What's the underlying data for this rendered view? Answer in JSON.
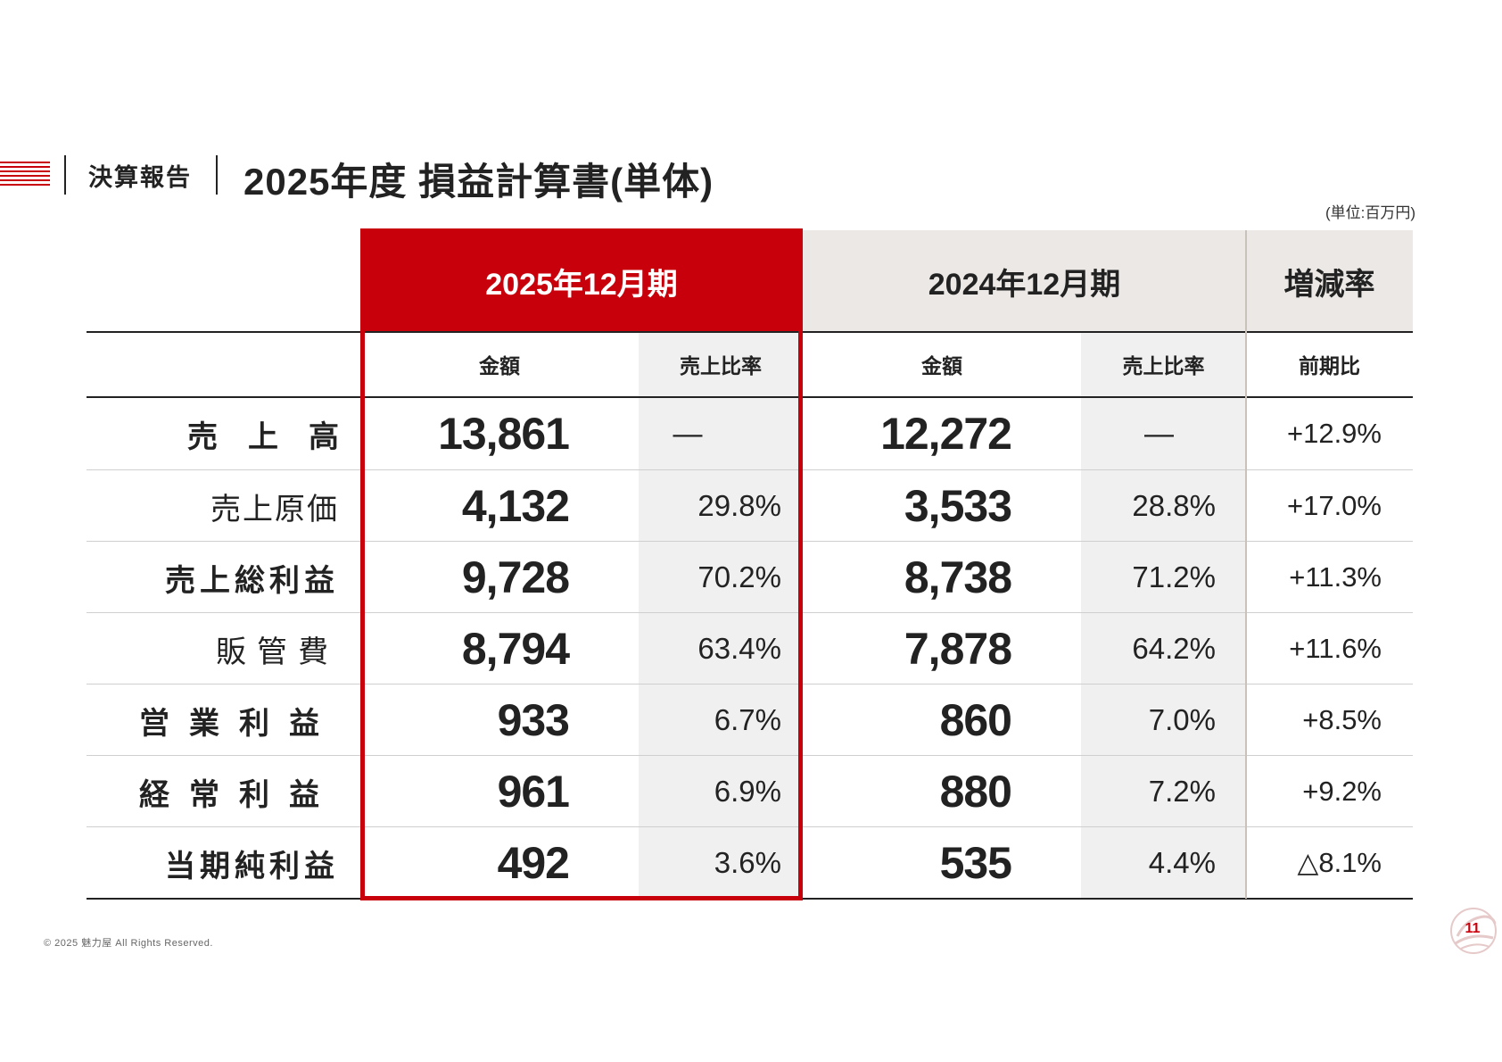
{
  "header": {
    "section": "決算報告",
    "title": "2025年度 損益計算書(単体)",
    "unit": "(単位:百万円)"
  },
  "table": {
    "columns": {
      "current_period": "2025年12月期",
      "previous_period": "2024年12月期",
      "change_rate": "増減率"
    },
    "subheaders": {
      "current_amount": "金額",
      "current_ratio": "売上比率",
      "previous_amount": "金額",
      "previous_ratio": "売上比率",
      "change": "前期比"
    },
    "rows": [
      {
        "label": "売　上　高",
        "current_amount": "13,861",
        "current_ratio": "—",
        "previous_amount": "12,272",
        "previous_ratio": "—",
        "change": "+12.9%"
      },
      {
        "label": "売上原価",
        "current_amount": "4,132",
        "current_ratio": "29.8%",
        "previous_amount": "3,533",
        "previous_ratio": "28.8%",
        "change": "+17.0%"
      },
      {
        "label": "売上総利益",
        "current_amount": "9,728",
        "current_ratio": "70.2%",
        "previous_amount": "8,738",
        "previous_ratio": "71.2%",
        "change": "+11.3%"
      },
      {
        "label": "販管費",
        "current_amount": "8,794",
        "current_ratio": "63.4%",
        "previous_amount": "7,878",
        "previous_ratio": "64.2%",
        "change": "+11.6%"
      },
      {
        "label": "営業利益",
        "current_amount": "933",
        "current_ratio": "6.7%",
        "previous_amount": "860",
        "previous_ratio": "7.0%",
        "change": "+8.5%"
      },
      {
        "label": "経常利益",
        "current_amount": "961",
        "current_ratio": "6.9%",
        "previous_amount": "880",
        "previous_ratio": "7.2%",
        "change": "+9.2%"
      },
      {
        "label": "当期純利益",
        "current_amount": "492",
        "current_ratio": "3.6%",
        "previous_amount": "535",
        "previous_ratio": "4.4%",
        "change": "△8.1%"
      }
    ]
  },
  "footer": {
    "copyright": "© 2025 魅力屋 All Rights Reserved.",
    "page_number": "11",
    "logo_icon": "company-logo-icon"
  },
  "colors": {
    "accent": "#c8000b",
    "header_bg": "#ebe8e5",
    "ratio_bg": "#f0f0f0"
  }
}
